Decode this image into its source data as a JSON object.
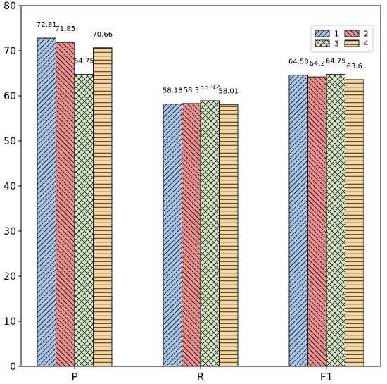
{
  "chart_data": {
    "type": "bar",
    "title": "",
    "xlabel": "",
    "ylabel": "",
    "categories": [
      "P",
      "R",
      "F1"
    ],
    "ylim": [
      0,
      80
    ],
    "yticks": [
      0,
      10,
      20,
      30,
      40,
      50,
      60,
      70,
      80
    ],
    "grid": false,
    "legend_position": "top-right",
    "series": [
      {
        "name": "1",
        "values": [
          72.81,
          58.18,
          64.58
        ],
        "value_labels": [
          "72.81",
          "58.18",
          "64.58"
        ],
        "color": "#a9c6ea",
        "hatch": "forward-diagonal"
      },
      {
        "name": "2",
        "values": [
          71.85,
          58.3,
          64.2
        ],
        "value_labels": [
          "71.85",
          "58.3",
          "64.2"
        ],
        "color": "#ee8e8e",
        "hatch": "back-diagonal"
      },
      {
        "name": "3",
        "values": [
          64.75,
          58.92,
          64.75
        ],
        "value_labels": [
          "64.75",
          "58.92",
          "64.75"
        ],
        "color": "#d8ecc9",
        "hatch": "crosshatch"
      },
      {
        "name": "4",
        "values": [
          70.66,
          58.01,
          63.6
        ],
        "value_labels": [
          "70.66",
          "58.01",
          "63.6"
        ],
        "color": "#f8d6a0",
        "hatch": "horizontal"
      }
    ]
  }
}
